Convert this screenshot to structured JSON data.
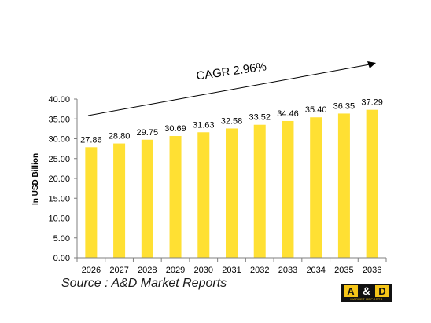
{
  "chart_data": {
    "type": "bar",
    "categories": [
      "2026",
      "2027",
      "2028",
      "2029",
      "2030",
      "2031",
      "2032",
      "2033",
      "2034",
      "2035",
      "2036"
    ],
    "values": [
      27.86,
      28.8,
      29.75,
      30.69,
      31.63,
      32.58,
      33.52,
      34.46,
      35.4,
      36.35,
      37.29
    ],
    "data_labels": [
      "27.86",
      "28.80",
      "29.75",
      "30.69",
      "31.63",
      "32.58",
      "33.52",
      "34.46",
      "35.40",
      "36.35",
      "37.29"
    ],
    "ylabel": "In USD Billion",
    "xlabel": "",
    "ylim": [
      0,
      40
    ],
    "yticks": [
      "0.00",
      "5.00",
      "10.00",
      "15.00",
      "20.00",
      "25.00",
      "30.00",
      "35.00",
      "40.00"
    ],
    "annotation": "CAGR 2.96%",
    "grid": false,
    "bar_color": "#FFE033"
  },
  "source_text": "Source : A&D Market Reports",
  "logo": {
    "left": "A",
    "amp": "&",
    "right": "D",
    "subtitle": "MARKET REPORTS"
  }
}
